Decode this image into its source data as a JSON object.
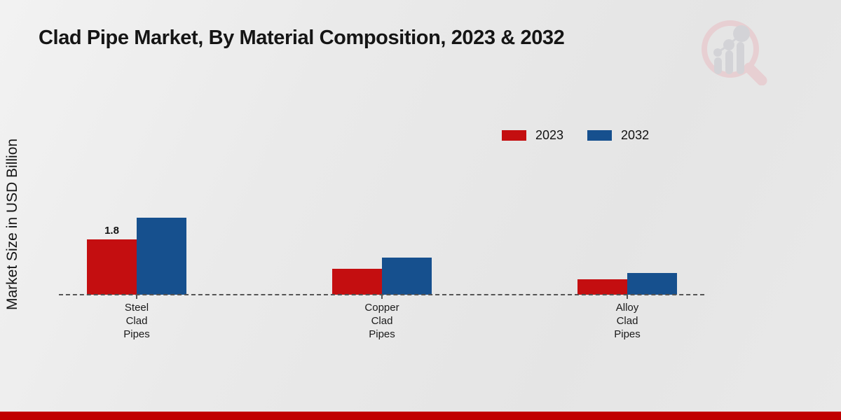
{
  "title": "Clad Pipe Market, By Material Composition, 2023 & 2032",
  "y_axis_label": "Market Size in USD Billion",
  "legend": {
    "position": "top-right",
    "items": [
      {
        "label": "2023",
        "color": "#c40e10"
      },
      {
        "label": "2032",
        "color": "#16508e"
      }
    ]
  },
  "colors": {
    "series_2023": "#c40e10",
    "series_2032": "#16508e",
    "baseline_dash": "#555555",
    "footer_strip": "#c00000",
    "background": "#e9e9e9",
    "text": "#151515"
  },
  "icons": {
    "watermark_logo": "magnifier-bar-chart-logo"
  },
  "chart_data": {
    "type": "bar",
    "title": "Clad Pipe Market, By Material Composition, 2023 & 2032",
    "ylabel": "Market Size in USD Billion",
    "xlabel": "",
    "categories": [
      "Steel Clad Pipes",
      "Copper Clad Pipes",
      "Alloy Clad Pipes"
    ],
    "series": [
      {
        "name": "2023",
        "color": "#c40e10",
        "values": [
          1.8,
          0.85,
          0.5
        ]
      },
      {
        "name": "2032",
        "color": "#16508e",
        "values": [
          2.5,
          1.2,
          0.7
        ]
      }
    ],
    "data_labels": [
      [
        "1.8",
        "",
        ""
      ],
      [
        "",
        "",
        ""
      ]
    ],
    "ylim": [
      0,
      2.8
    ],
    "grid": false,
    "axis_style": "dashed-baseline-only",
    "legend_position": "top-right"
  },
  "footer": {
    "strip_color": "#c00000"
  }
}
